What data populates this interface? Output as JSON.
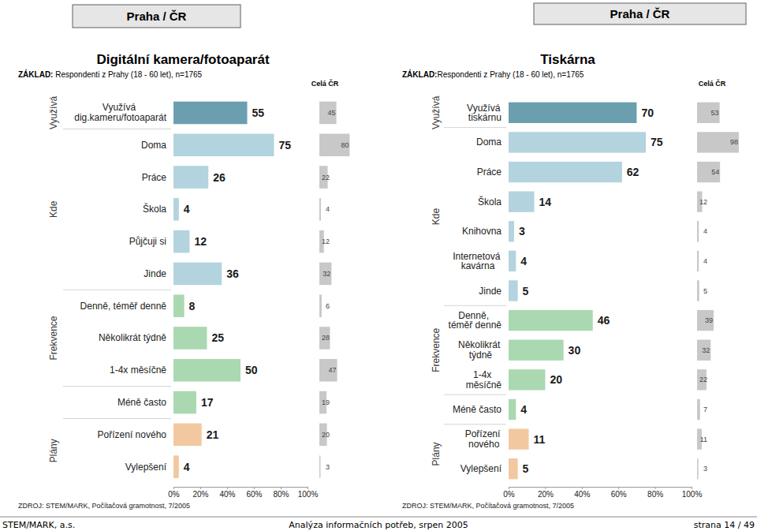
{
  "chart_data": [
    {
      "type": "bar",
      "orientation": "horizontal",
      "header": "Praha / ČR",
      "title": "Digitální kamera/fotoaparát",
      "subtitle": "ZÁKLAD: Respondenti z Prahy (18 - 60 let), n=1765",
      "source": "ZDROJ: STEM/MARK, Počítačová gramotnost, 7/2005",
      "categories": [
        "Využívá dig.kameru/fotoaparát",
        "Doma",
        "Práce",
        "Škola",
        "Půjčuji si",
        "Jinde",
        "Denně, téměř denně",
        "Několikrát týdně",
        "1-4x měsíčně",
        "Méně často",
        "Pořízení nového",
        "Vylepšení"
      ],
      "groups": [
        "Využívá",
        "Kde",
        "Kde",
        "Kde",
        "Kde",
        "Kde",
        "Frekvence",
        "Frekvence",
        "Frekvence",
        null,
        "Plány",
        "Plány"
      ],
      "series": [
        {
          "values": [
            55,
            75,
            26,
            4,
            12,
            36,
            8,
            25,
            50,
            17,
            21,
            4
          ],
          "colors": [
            "#6b9fb0",
            "#b3d3de",
            "#b3d3de",
            "#b3d3de",
            "#b3d3de",
            "#b3d3de",
            "#a9d8b1",
            "#a9d8b1",
            "#a9d8b1",
            "#a9d8b1",
            "#f2c8a0",
            "#f2c8a0"
          ]
        },
        {
          "name": "Celá ČR",
          "color": "#c8c8c8",
          "values": [
            45,
            80,
            22,
            4,
            12,
            32,
            6,
            28,
            47,
            19,
            20,
            3
          ]
        }
      ],
      "xlim": [
        0,
        100
      ],
      "xticks": [
        {
          "value": 0,
          "label": "0%"
        },
        {
          "value": 20,
          "label": "20%"
        },
        {
          "value": 40,
          "label": "40%"
        },
        {
          "value": 60,
          "label": "60%"
        },
        {
          "value": 80,
          "label": "80%"
        },
        {
          "value": 100,
          "label": "100%"
        }
      ],
      "grid": false,
      "data_labels": true
    },
    {
      "type": "bar",
      "orientation": "horizontal",
      "header": "Praha / ČR",
      "title": "Tiskárna",
      "subtitle": "ZÁKLAD:Respondenti z Prahy (18 - 60 let), n=1765",
      "source": "ZDROJ: STEM/MARK, Počítačová gramotnost, 7/2005",
      "categories": [
        "Využívá tiskárnu",
        "Doma",
        "Práce",
        "Škola",
        "Knihovna",
        "Internetová kavárna",
        "Jinde",
        "Denně, téměř denně",
        "Několikrát týdně",
        "1-4x měsíčně",
        "Méně často",
        "Pořízení nového",
        "Vylepšení"
      ],
      "groups": [
        "Využívá",
        "Kde",
        "Kde",
        "Kde",
        "Kde",
        "Kde",
        "Kde",
        "Frekvence",
        "Frekvence",
        "Frekvence",
        null,
        "Plány",
        "Plány"
      ],
      "series": [
        {
          "values": [
            70,
            75,
            62,
            14,
            3,
            4,
            5,
            46,
            30,
            20,
            4,
            11,
            5
          ],
          "colors": [
            "#6b9fb0",
            "#b3d3de",
            "#b3d3de",
            "#b3d3de",
            "#b3d3de",
            "#b3d3de",
            "#b3d3de",
            "#a9d8b1",
            "#a9d8b1",
            "#a9d8b1",
            "#a9d8b1",
            "#f2c8a0",
            "#f2c8a0"
          ]
        },
        {
          "name": "Celá ČR",
          "color": "#c8c8c8",
          "values": [
            53,
            98,
            54,
            12,
            4,
            4,
            5,
            39,
            32,
            22,
            7,
            11,
            3
          ]
        }
      ],
      "xlim": [
        0,
        100
      ],
      "xticks": [
        {
          "value": 0,
          "label": "0%"
        },
        {
          "value": 20,
          "label": "20%"
        },
        {
          "value": 40,
          "label": "40%"
        },
        {
          "value": 60,
          "label": "60%"
        },
        {
          "value": 80,
          "label": "80%"
        },
        {
          "value": 100,
          "label": "100%"
        }
      ],
      "grid": false,
      "data_labels": true
    }
  ],
  "footer": {
    "left": "STEM/MARK, a.s.",
    "center": "Analýza informačních potřeb, srpen 2005",
    "right": "strana 14 / 49"
  }
}
